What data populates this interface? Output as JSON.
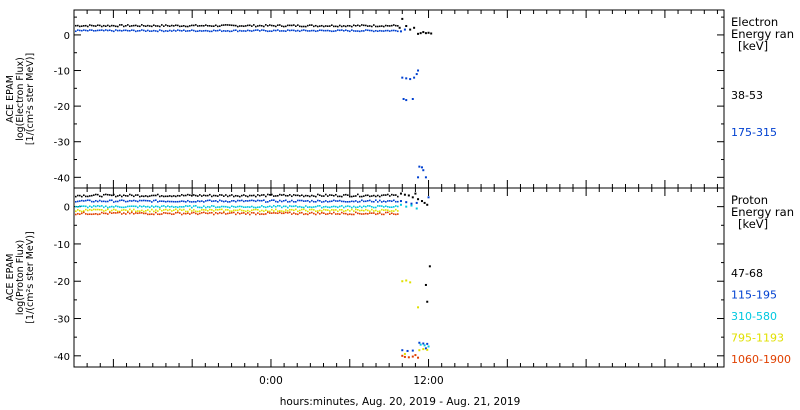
{
  "chart_data": [
    {
      "type": "scatter",
      "panel": "electron",
      "ylabel_lines": [
        "ACE EPAM",
        "log(Electron Flux)",
        "[1/(cm²s ster MeV)]"
      ],
      "ylim": [
        -43,
        7
      ],
      "yticks": [
        0,
        -10,
        -20,
        -30,
        -40
      ],
      "xlim": [
        -15,
        34.5
      ],
      "legend_title_lines": [
        "Electron",
        "Energy ran",
        "[keV]"
      ],
      "series": [
        {
          "name": "38-53",
          "color": "#000000",
          "baseline": {
            "x": [
              -15,
              9.7
            ],
            "y": 2.6,
            "jitter": 0.25
          },
          "points": [
            [
              9.8,
              2.0
            ],
            [
              10.0,
              4.5
            ],
            [
              10.3,
              2.5
            ],
            [
              10.6,
              1.5
            ],
            [
              10.9,
              2.0
            ],
            [
              11.2,
              0.3
            ],
            [
              11.4,
              0.5
            ],
            [
              11.6,
              0.8
            ],
            [
              11.8,
              0.5
            ],
            [
              12.0,
              0.6
            ],
            [
              12.2,
              0.4
            ]
          ]
        },
        {
          "name": "175-315",
          "color": "#0040d0",
          "baseline": {
            "x": [
              -15,
              9.7
            ],
            "y": 1.2,
            "jitter": 0.2
          },
          "points": [
            [
              9.9,
              1.0
            ],
            [
              10.2,
              1.5
            ],
            [
              10.0,
              -12.0
            ],
            [
              10.3,
              -12.2
            ],
            [
              10.6,
              -12.4
            ],
            [
              10.9,
              -12.0
            ],
            [
              11.1,
              -11.0
            ],
            [
              11.2,
              -10.0
            ],
            [
              10.1,
              -18.0
            ],
            [
              10.3,
              -18.3
            ],
            [
              10.8,
              -18.0
            ],
            [
              11.3,
              -37.0
            ],
            [
              11.5,
              -37.2
            ],
            [
              11.6,
              -38.0
            ],
            [
              11.8,
              -40.0
            ],
            [
              11.2,
              -40.0
            ]
          ]
        }
      ]
    },
    {
      "type": "scatter",
      "panel": "proton",
      "ylabel_lines": [
        "ACE EPAM",
        "log(Proton Flux)",
        "[1/(cm²s ster MeV)]"
      ],
      "ylim": [
        -43,
        5
      ],
      "yticks": [
        0,
        -10,
        -20,
        -30,
        -40
      ],
      "xlim": [
        -15,
        34.5
      ],
      "legend_title_lines": [
        "Proton",
        "Energy ran",
        "[keV]"
      ],
      "xlabel": "hours:minutes, Aug. 20, 2019 - Aug. 21, 2019",
      "xtick_labels": [
        {
          "x": 0,
          "label": "0:00"
        },
        {
          "x": 12,
          "label": "12:00"
        }
      ],
      "series": [
        {
          "name": "47-68",
          "color": "#000000",
          "baseline": {
            "x": [
              -15,
              9.7
            ],
            "y": 3.0,
            "jitter": 0.3
          },
          "points": [
            [
              9.9,
              3.5
            ],
            [
              10.2,
              3.2
            ],
            [
              10.5,
              3.0
            ],
            [
              10.8,
              2.5
            ],
            [
              11.0,
              3.5
            ],
            [
              11.2,
              2.0
            ],
            [
              11.5,
              1.5
            ],
            [
              11.7,
              1.0
            ],
            [
              11.9,
              0.5
            ],
            [
              12.1,
              -16.0
            ],
            [
              11.8,
              -21.0
            ],
            [
              11.9,
              -25.5
            ]
          ]
        },
        {
          "name": "115-195",
          "color": "#0040d0",
          "baseline": {
            "x": [
              -15,
              9.7
            ],
            "y": 1.5,
            "jitter": 0.25
          },
          "points": [
            [
              9.9,
              1.5
            ],
            [
              10.3,
              1.2
            ],
            [
              10.7,
              0.8
            ],
            [
              11.1,
              1.0
            ],
            [
              12.0,
              2.5
            ],
            [
              10.0,
              -38.5
            ],
            [
              10.4,
              -38.7
            ],
            [
              10.8,
              -38.6
            ],
            [
              11.3,
              -36.5
            ],
            [
              11.6,
              -36.7
            ],
            [
              11.9,
              -36.8
            ],
            [
              11.8,
              -38.0
            ]
          ]
        },
        {
          "name": "310-580",
          "color": "#00c8e0",
          "baseline": {
            "x": [
              -15,
              9.7
            ],
            "y": 0.0,
            "jitter": 0.25
          },
          "points": [
            [
              9.9,
              0.5
            ],
            [
              10.3,
              0.0
            ],
            [
              10.7,
              0.3
            ],
            [
              11.1,
              -0.5
            ],
            [
              11.4,
              -37.0
            ],
            [
              11.7,
              -37.2
            ],
            [
              12.0,
              -37.5
            ]
          ]
        },
        {
          "name": "795-1193",
          "color": "#e0e000",
          "baseline": {
            "x": [
              -15,
              9.7
            ],
            "y": -1.0,
            "jitter": 0.3
          },
          "points": [
            [
              10.0,
              -20.0
            ],
            [
              10.3,
              -19.8
            ],
            [
              10.6,
              -20.3
            ],
            [
              11.2,
              -27.0
            ],
            [
              11.3,
              -38.5
            ],
            [
              11.6,
              -38.2
            ],
            [
              11.9,
              -38.4
            ],
            [
              10.2,
              -39.5
            ]
          ]
        },
        {
          "name": "1060-1900",
          "color": "#e04000",
          "baseline": {
            "x": [
              -15,
              9.7
            ],
            "y": -1.8,
            "jitter": 0.3
          },
          "points": [
            [
              10.0,
              -40.0
            ],
            [
              10.2,
              -40.3
            ],
            [
              10.5,
              -40.4
            ],
            [
              10.8,
              -40.2
            ],
            [
              11.2,
              -40.5
            ],
            [
              11.0,
              -39.8
            ]
          ]
        }
      ]
    }
  ]
}
